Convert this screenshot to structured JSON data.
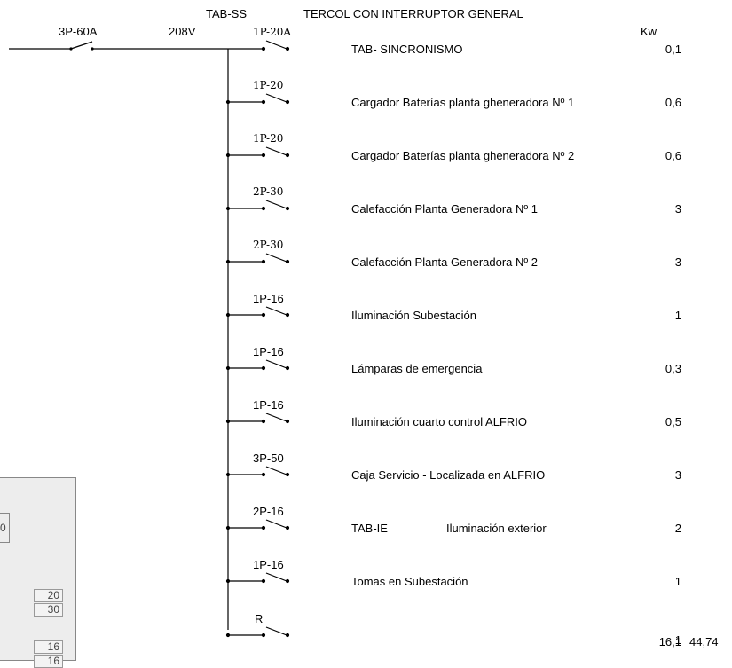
{
  "header": {
    "panel_name": "TAB-SS",
    "panel_description": "TERCOL CON INTERRUPTOR GENERAL",
    "kw_header": "Kw"
  },
  "main_feed": {
    "breaker": "3P-60A",
    "voltage": "208V"
  },
  "circuits": [
    {
      "breaker": "1P-20A",
      "description": "TAB- SINCRONISMO",
      "kw": "0,1"
    },
    {
      "breaker": "1P-20",
      "description": "Cargador Baterías planta gheneradora Nº 1",
      "kw": "0,6"
    },
    {
      "breaker": "1P-20",
      "description": "Cargador Baterías planta gheneradora Nº 2",
      "kw": "0,6"
    },
    {
      "breaker": "2P-30",
      "description": "Calefacción Planta Generadora Nº 1",
      "kw": "3"
    },
    {
      "breaker": "2P-30",
      "description": "Calefacción Planta Generadora Nº 2",
      "kw": "3"
    },
    {
      "breaker": "1P-16",
      "description": "Iluminación Subestación",
      "kw": "1"
    },
    {
      "breaker": "1P-16",
      "description": "Lámparas de emergencia",
      "kw": "0,3"
    },
    {
      "breaker": "1P-16",
      "description": "Iluminación cuarto control ALFRIO",
      "kw": "0,5"
    },
    {
      "breaker": "3P-50",
      "description": "Caja Servicio - Localizada en ALFRIO",
      "kw": "3"
    },
    {
      "breaker": "2P-16",
      "description": "TAB-IE",
      "description2": "Iluminación exterior",
      "kw": "2"
    },
    {
      "breaker": "1P-16",
      "description": "Tomas en Subestación",
      "kw": "1"
    },
    {
      "breaker": "R",
      "description": "",
      "kw": "1"
    }
  ],
  "totals": {
    "kw_total": "16,1",
    "amps_total": "44,74"
  },
  "side_panel": {
    "inner_label": "0",
    "cells": [
      "20",
      "30",
      "16",
      "16"
    ]
  }
}
